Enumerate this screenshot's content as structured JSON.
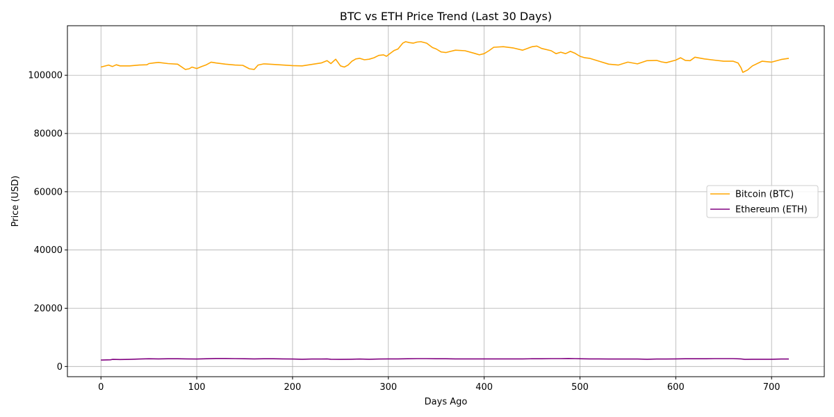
{
  "chart_data": {
    "type": "line",
    "title": "BTC vs ETH Price Trend (Last 30 Days)",
    "xlabel": "Days Ago",
    "ylabel": "Price (USD)",
    "xlim": [
      -35,
      755
    ],
    "ylim": [
      -3500,
      117000
    ],
    "xticks": [
      0,
      100,
      200,
      300,
      400,
      500,
      600,
      700
    ],
    "yticks": [
      0,
      20000,
      40000,
      60000,
      80000,
      100000
    ],
    "grid": true,
    "legend_position": "center-right",
    "series": [
      {
        "name": "Bitcoin (BTC)",
        "color": "#ffa500",
        "x": [
          0,
          8,
          12,
          16,
          20,
          30,
          40,
          48,
          50,
          55,
          60,
          70,
          80,
          88,
          92,
          95,
          100,
          105,
          110,
          115,
          120,
          130,
          140,
          148,
          155,
          160,
          164,
          170,
          180,
          190,
          200,
          210,
          220,
          230,
          236,
          240,
          245,
          250,
          254,
          258,
          262,
          266,
          270,
          275,
          280,
          285,
          290,
          295,
          298,
          302,
          306,
          310,
          315,
          318,
          322,
          326,
          330,
          334,
          340,
          346,
          350,
          355,
          360,
          365,
          370,
          380,
          390,
          395,
          400,
          405,
          410,
          420,
          430,
          440,
          445,
          450,
          455,
          460,
          470,
          475,
          480,
          485,
          490,
          495,
          500,
          505,
          510,
          520,
          530,
          540,
          550,
          560,
          570,
          580,
          585,
          590,
          600,
          605,
          610,
          615,
          620,
          630,
          640,
          650,
          660,
          665,
          668,
          670,
          675,
          680,
          690,
          700,
          710,
          718
        ],
        "y": [
          102800,
          103500,
          103000,
          103600,
          103200,
          103200,
          103500,
          103600,
          104000,
          104200,
          104400,
          104000,
          103800,
          102000,
          102200,
          102800,
          102300,
          103000,
          103600,
          104500,
          104200,
          103800,
          103500,
          103400,
          102200,
          102000,
          103500,
          103900,
          103700,
          103500,
          103300,
          103200,
          103700,
          104200,
          105000,
          104000,
          105500,
          103200,
          102800,
          103500,
          104800,
          105600,
          105800,
          105300,
          105500,
          106000,
          106800,
          107000,
          106500,
          107500,
          108500,
          109000,
          111000,
          111500,
          111200,
          111000,
          111400,
          111500,
          111000,
          109500,
          109000,
          108000,
          107800,
          108200,
          108600,
          108400,
          107500,
          107000,
          107400,
          108400,
          109600,
          109800,
          109400,
          108600,
          109200,
          109800,
          110000,
          109200,
          108400,
          107400,
          107900,
          107400,
          108200,
          107500,
          106500,
          106000,
          105800,
          104800,
          103800,
          103500,
          104500,
          103900,
          105000,
          105100,
          104600,
          104300,
          105200,
          106000,
          105100,
          105000,
          106200,
          105600,
          105200,
          104800,
          104800,
          104200,
          102600,
          101000,
          101800,
          103200,
          104800,
          104500,
          105400,
          105800
        ]
      },
      {
        "name": "Ethereum (ETH)",
        "color": "#800080",
        "x": [
          0,
          10,
          12,
          20,
          30,
          40,
          50,
          60,
          70,
          80,
          90,
          100,
          110,
          120,
          130,
          140,
          150,
          160,
          170,
          180,
          190,
          200,
          210,
          220,
          230,
          236,
          240,
          250,
          260,
          270,
          280,
          290,
          300,
          310,
          320,
          330,
          340,
          350,
          360,
          370,
          380,
          390,
          400,
          410,
          420,
          430,
          440,
          450,
          460,
          470,
          480,
          488,
          495,
          500,
          510,
          520,
          530,
          540,
          550,
          560,
          570,
          580,
          590,
          600,
          610,
          620,
          630,
          640,
          650,
          660,
          668,
          672,
          680,
          690,
          700,
          710,
          718
        ],
        "y": [
          2200,
          2300,
          2450,
          2400,
          2450,
          2550,
          2650,
          2600,
          2650,
          2650,
          2600,
          2550,
          2650,
          2750,
          2750,
          2700,
          2650,
          2600,
          2650,
          2650,
          2600,
          2550,
          2500,
          2550,
          2550,
          2600,
          2500,
          2450,
          2500,
          2550,
          2500,
          2550,
          2600,
          2600,
          2650,
          2700,
          2700,
          2650,
          2650,
          2600,
          2600,
          2600,
          2600,
          2600,
          2600,
          2600,
          2600,
          2650,
          2650,
          2700,
          2700,
          2750,
          2700,
          2650,
          2600,
          2600,
          2550,
          2550,
          2550,
          2550,
          2500,
          2550,
          2550,
          2600,
          2650,
          2650,
          2650,
          2700,
          2700,
          2700,
          2600,
          2450,
          2500,
          2500,
          2500,
          2550,
          2550
        ]
      }
    ]
  }
}
